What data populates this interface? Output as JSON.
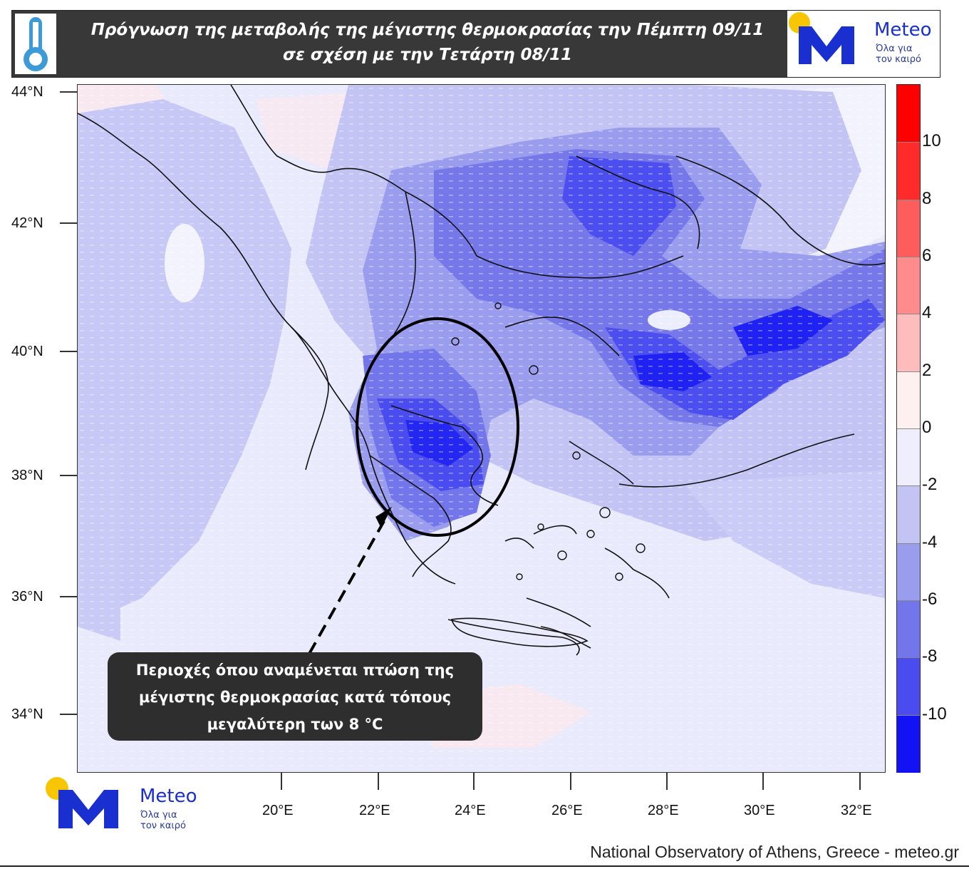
{
  "header": {
    "title_line1": "Πρόγνωση της μεταβολής της μέγιστης θερμοκρασίας την Πέμπτη 09/11",
    "title_line2": "σε σχέση με την Τετάρτη 08/11",
    "icon": "thermometer-icon"
  },
  "logo": {
    "brand": "Meteo",
    "tagline_line1": "Όλα για",
    "tagline_line2": "τον καιρό",
    "colors": {
      "accent_dot": "#f7c600",
      "mark": "#1a2fd0"
    }
  },
  "map": {
    "lat_labels": [
      "44°N",
      "42°N",
      "40°N",
      "38°N",
      "36°N",
      "34°N"
    ],
    "lon_labels": [
      "20°E",
      "22°E",
      "24°E",
      "26°E",
      "28°E",
      "30°E",
      "32°E"
    ],
    "field": "change in maximum temperature (°C)"
  },
  "colorbar": {
    "labels": [
      "10",
      "8",
      "6",
      "4",
      "2",
      "0",
      "-2",
      "-4",
      "-6",
      "-8",
      "-10"
    ],
    "colors": [
      "#ff0000",
      "#ff2b2b",
      "#ff5c5c",
      "#ff8c8c",
      "#ffbcbc",
      "#fff0f0",
      "#eeeefc",
      "#c3c4f4",
      "#9a9cee",
      "#7375ea",
      "#4a4cef",
      "#1212f5"
    ]
  },
  "callout": {
    "line1": "Περιοχές όπου αναμένεται πτώση της",
    "line2": "μέγιστης θερμοκρασίας  κατά τόπους",
    "line3": "μεγαλύτερη των 8 °C"
  },
  "credit": "National Observatory of Athens, Greece - meteo.gr"
}
